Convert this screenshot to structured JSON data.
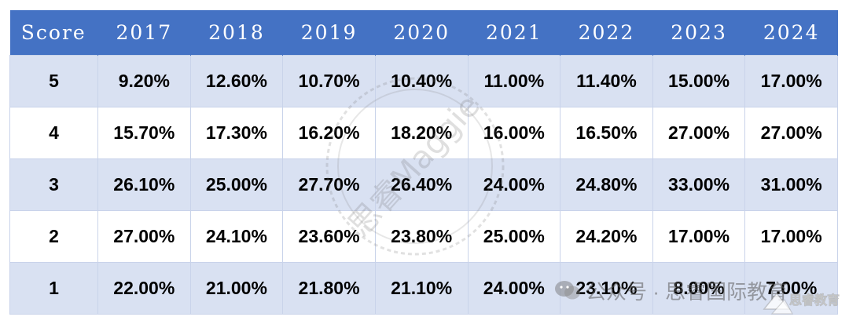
{
  "table": {
    "header": [
      "Score",
      "2017",
      "2018",
      "2019",
      "2020",
      "2021",
      "2022",
      "2023",
      "2024"
    ],
    "rows": [
      [
        "5",
        "9.20%",
        "12.60%",
        "10.70%",
        "10.40%",
        "11.00%",
        "11.40%",
        "15.00%",
        "17.00%"
      ],
      [
        "4",
        "15.70%",
        "17.30%",
        "16.20%",
        "18.20%",
        "16.00%",
        "16.50%",
        "27.00%",
        "27.00%"
      ],
      [
        "3",
        "26.10%",
        "25.00%",
        "27.70%",
        "26.40%",
        "24.00%",
        "24.80%",
        "33.00%",
        "31.00%"
      ],
      [
        "2",
        "27.00%",
        "24.10%",
        "23.60%",
        "23.80%",
        "25.00%",
        "24.20%",
        "17.00%",
        "17.00%"
      ],
      [
        "1",
        "22.00%",
        "21.00%",
        "21.80%",
        "21.10%",
        "24.00%",
        "23.10%",
        "8.00%",
        "7.00%"
      ]
    ]
  },
  "watermark": {
    "seal_text": "思睿Maggie",
    "footer_text": "公众号 · 思睿国际教育",
    "corner_logo_text": "思睿教育"
  },
  "colors": {
    "header_bg": "#4472c4",
    "header_text": "#ffffff",
    "band_odd": "#d9e1f2",
    "band_even": "#ffffff",
    "grid": "#c9d3ea"
  },
  "icons": {
    "footer": "wechat-icon",
    "corner": "logo-icon"
  }
}
